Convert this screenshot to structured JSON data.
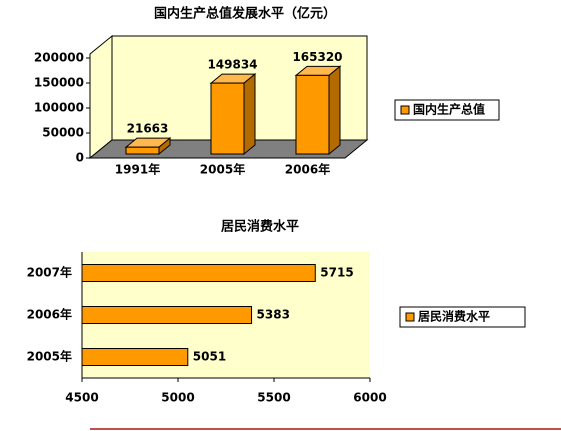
{
  "chart_data": [
    {
      "type": "bar",
      "three_d": true,
      "title": "国内生产总值发展水平（亿元）",
      "categories": [
        "1991年",
        "2005年",
        "2006年"
      ],
      "series": [
        {
          "name": "国内生产总值",
          "color": "#ff9900",
          "values": [
            21663,
            149834,
            165320
          ]
        }
      ],
      "ylim": [
        0,
        200000
      ],
      "yticks": [
        0,
        50000,
        100000,
        150000,
        200000
      ],
      "wall_color": "#ffffcc",
      "floor_color": "#808080",
      "legend": "right"
    },
    {
      "type": "bar",
      "horizontal": true,
      "title": "居民消费水平",
      "categories": [
        "2005年",
        "2006年",
        "2007年"
      ],
      "series": [
        {
          "name": "居民消费水平",
          "color": "#ff9900",
          "values": [
            5051,
            5383,
            5715
          ]
        }
      ],
      "xlim": [
        4500,
        6000
      ],
      "xticks": [
        4500,
        5000,
        5500,
        6000
      ],
      "wall_color": "#ffffcc",
      "legend": "right"
    }
  ]
}
